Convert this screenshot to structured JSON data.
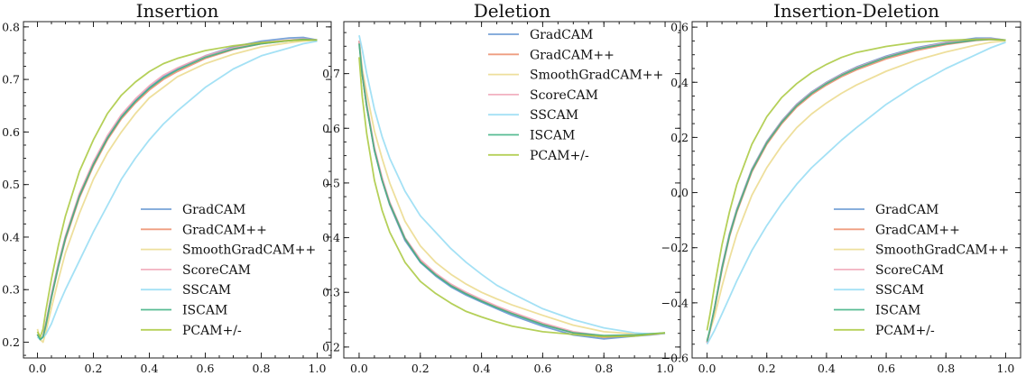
{
  "chart_data": [
    {
      "type": "line",
      "title": "Insertion",
      "xlabel": "",
      "ylabel": "",
      "xlim": [
        -0.05,
        1.05
      ],
      "ylim": [
        0.17,
        0.81
      ],
      "xticks": [
        "0.0",
        "0.2",
        "0.4",
        "0.6",
        "0.8",
        "1.0"
      ],
      "xtick_values": [
        0,
        0.2,
        0.4,
        0.6,
        0.8,
        1.0
      ],
      "yticks": [
        "0.2",
        "0.3",
        "0.4",
        "0.5",
        "0.6",
        "0.7",
        "0.8"
      ],
      "ytick_values": [
        0.2,
        0.3,
        0.4,
        0.5,
        0.6,
        0.7,
        0.8
      ],
      "legend_position": "lower-right",
      "x": [
        0,
        0.01,
        0.02,
        0.03,
        0.05,
        0.075,
        0.1,
        0.15,
        0.2,
        0.25,
        0.3,
        0.35,
        0.4,
        0.45,
        0.5,
        0.6,
        0.7,
        0.8,
        0.9,
        0.95,
        1.0
      ],
      "series": [
        {
          "name": "GradCAM",
          "values": [
            0.215,
            0.205,
            0.21,
            0.235,
            0.29,
            0.35,
            0.4,
            0.48,
            0.54,
            0.59,
            0.63,
            0.66,
            0.685,
            0.705,
            0.72,
            0.745,
            0.762,
            0.773,
            0.779,
            0.78,
            0.775
          ]
        },
        {
          "name": "GradCAM++",
          "values": [
            0.215,
            0.205,
            0.21,
            0.233,
            0.285,
            0.345,
            0.395,
            0.475,
            0.535,
            0.585,
            0.625,
            0.655,
            0.68,
            0.7,
            0.715,
            0.74,
            0.757,
            0.768,
            0.774,
            0.776,
            0.775
          ]
        },
        {
          "name": "SmoothGradCAM++",
          "values": [
            0.225,
            0.205,
            0.2,
            0.22,
            0.265,
            0.32,
            0.37,
            0.445,
            0.51,
            0.56,
            0.6,
            0.635,
            0.665,
            0.685,
            0.705,
            0.73,
            0.748,
            0.762,
            0.77,
            0.773,
            0.775
          ]
        },
        {
          "name": "ScoreCAM",
          "values": [
            0.215,
            0.205,
            0.212,
            0.236,
            0.29,
            0.35,
            0.402,
            0.483,
            0.543,
            0.593,
            0.633,
            0.663,
            0.688,
            0.708,
            0.722,
            0.745,
            0.76,
            0.77,
            0.775,
            0.777,
            0.775
          ]
        },
        {
          "name": "SSCAM",
          "values": [
            0.21,
            0.205,
            0.21,
            0.215,
            0.235,
            0.27,
            0.3,
            0.355,
            0.41,
            0.46,
            0.51,
            0.55,
            0.585,
            0.615,
            0.64,
            0.685,
            0.72,
            0.745,
            0.76,
            0.768,
            0.773
          ]
        },
        {
          "name": "ISCAM",
          "values": [
            0.215,
            0.205,
            0.21,
            0.232,
            0.285,
            0.345,
            0.398,
            0.478,
            0.538,
            0.588,
            0.628,
            0.658,
            0.683,
            0.703,
            0.718,
            0.742,
            0.758,
            0.768,
            0.774,
            0.776,
            0.775
          ]
        },
        {
          "name": "PCAM+/-",
          "values": [
            0.22,
            0.21,
            0.225,
            0.26,
            0.32,
            0.385,
            0.44,
            0.525,
            0.585,
            0.635,
            0.67,
            0.695,
            0.715,
            0.73,
            0.74,
            0.755,
            0.764,
            0.77,
            0.774,
            0.775,
            0.775
          ]
        }
      ]
    },
    {
      "type": "line",
      "title": "Deletion",
      "xlabel": "",
      "ylabel": "",
      "xlim": [
        -0.05,
        1.05
      ],
      "ylim": [
        0.18,
        0.795
      ],
      "xticks": [
        "0.0",
        "0.2",
        "0.4",
        "0.6",
        "0.8",
        "1.0"
      ],
      "xtick_values": [
        0,
        0.2,
        0.4,
        0.6,
        0.8,
        1.0
      ],
      "yticks": [
        "0.2",
        "0.3",
        "0.4",
        "0.5",
        "0.6",
        "0.7"
      ],
      "ytick_values": [
        0.2,
        0.3,
        0.4,
        0.5,
        0.6,
        0.7
      ],
      "legend_position": "upper-right",
      "x": [
        0,
        0.01,
        0.025,
        0.05,
        0.075,
        0.1,
        0.15,
        0.2,
        0.25,
        0.3,
        0.35,
        0.4,
        0.45,
        0.5,
        0.6,
        0.7,
        0.8,
        0.9,
        0.95,
        1.0
      ],
      "series": [
        {
          "name": "GradCAM",
          "values": [
            0.76,
            0.7,
            0.64,
            0.56,
            0.505,
            0.46,
            0.395,
            0.355,
            0.33,
            0.31,
            0.295,
            0.282,
            0.27,
            0.258,
            0.238,
            0.222,
            0.215,
            0.22,
            0.222,
            0.225
          ]
        },
        {
          "name": "GradCAM++",
          "values": [
            0.76,
            0.7,
            0.64,
            0.562,
            0.507,
            0.462,
            0.398,
            0.358,
            0.333,
            0.313,
            0.298,
            0.285,
            0.273,
            0.262,
            0.242,
            0.226,
            0.218,
            0.221,
            0.223,
            0.225
          ]
        },
        {
          "name": "SmoothGradCAM++",
          "values": [
            0.76,
            0.71,
            0.665,
            0.595,
            0.545,
            0.5,
            0.43,
            0.385,
            0.355,
            0.333,
            0.315,
            0.3,
            0.288,
            0.277,
            0.258,
            0.24,
            0.228,
            0.224,
            0.224,
            0.225
          ]
        },
        {
          "name": "ScoreCAM",
          "values": [
            0.76,
            0.705,
            0.645,
            0.565,
            0.51,
            0.465,
            0.4,
            0.36,
            0.335,
            0.315,
            0.3,
            0.287,
            0.275,
            0.264,
            0.244,
            0.228,
            0.22,
            0.222,
            0.224,
            0.225
          ]
        },
        {
          "name": "SSCAM",
          "values": [
            0.77,
            0.745,
            0.7,
            0.635,
            0.585,
            0.545,
            0.485,
            0.44,
            0.41,
            0.38,
            0.355,
            0.333,
            0.313,
            0.298,
            0.27,
            0.25,
            0.235,
            0.226,
            0.224,
            0.225
          ]
        },
        {
          "name": "ISCAM",
          "values": [
            0.755,
            0.7,
            0.64,
            0.56,
            0.505,
            0.462,
            0.398,
            0.356,
            0.332,
            0.312,
            0.297,
            0.284,
            0.272,
            0.261,
            0.241,
            0.226,
            0.221,
            0.222,
            0.224,
            0.226
          ]
        },
        {
          "name": "PCAM+/-",
          "values": [
            0.73,
            0.66,
            0.59,
            0.505,
            0.45,
            0.41,
            0.355,
            0.32,
            0.298,
            0.28,
            0.265,
            0.255,
            0.246,
            0.238,
            0.228,
            0.223,
            0.219,
            0.22,
            0.223,
            0.226
          ]
        }
      ]
    },
    {
      "type": "line",
      "title": "Insertion-Deletion",
      "xlabel": "",
      "ylabel": "",
      "xlim": [
        -0.05,
        1.05
      ],
      "ylim": [
        -0.6,
        0.62
      ],
      "xticks": [
        "0.0",
        "0.2",
        "0.4",
        "0.6",
        "0.8",
        "1.0"
      ],
      "xtick_values": [
        0,
        0.2,
        0.4,
        0.6,
        0.8,
        1.0
      ],
      "yticks": [
        "−0.6",
        "−0.4",
        "−0.2",
        "0.0",
        "0.2",
        "0.4",
        "0.6"
      ],
      "ytick_values": [
        -0.6,
        -0.4,
        -0.2,
        0.0,
        0.2,
        0.4,
        0.6
      ],
      "legend_position": "lower-right",
      "x": [
        0,
        0.01,
        0.025,
        0.05,
        0.075,
        0.1,
        0.15,
        0.2,
        0.25,
        0.3,
        0.35,
        0.4,
        0.45,
        0.5,
        0.6,
        0.7,
        0.8,
        0.9,
        0.95,
        1.0
      ],
      "series": [
        {
          "name": "GradCAM",
          "values": [
            -0.545,
            -0.5,
            -0.42,
            -0.27,
            -0.15,
            -0.06,
            0.085,
            0.185,
            0.26,
            0.32,
            0.365,
            0.4,
            0.43,
            0.455,
            0.495,
            0.525,
            0.545,
            0.56,
            0.56,
            0.553
          ]
        },
        {
          "name": "GradCAM++",
          "values": [
            -0.545,
            -0.5,
            -0.425,
            -0.28,
            -0.16,
            -0.07,
            0.075,
            0.175,
            0.25,
            0.31,
            0.355,
            0.39,
            0.42,
            0.445,
            0.485,
            0.515,
            0.537,
            0.552,
            0.555,
            0.553
          ]
        },
        {
          "name": "SmoothGradCAM++",
          "values": [
            -0.535,
            -0.5,
            -0.45,
            -0.34,
            -0.24,
            -0.15,
            -0.01,
            0.09,
            0.17,
            0.235,
            0.285,
            0.325,
            0.36,
            0.39,
            0.44,
            0.48,
            0.51,
            0.535,
            0.545,
            0.55
          ]
        },
        {
          "name": "ScoreCAM",
          "values": [
            -0.545,
            -0.498,
            -0.42,
            -0.272,
            -0.152,
            -0.062,
            0.083,
            0.183,
            0.258,
            0.318,
            0.363,
            0.398,
            0.428,
            0.453,
            0.492,
            0.522,
            0.543,
            0.556,
            0.558,
            0.553
          ]
        },
        {
          "name": "SSCAM",
          "values": [
            -0.55,
            -0.53,
            -0.5,
            -0.44,
            -0.38,
            -0.32,
            -0.21,
            -0.12,
            -0.04,
            0.03,
            0.09,
            0.14,
            0.19,
            0.235,
            0.32,
            0.39,
            0.45,
            0.5,
            0.525,
            0.545
          ]
        },
        {
          "name": "ISCAM",
          "values": [
            -0.54,
            -0.495,
            -0.42,
            -0.275,
            -0.155,
            -0.065,
            0.08,
            0.18,
            0.255,
            0.315,
            0.36,
            0.395,
            0.425,
            0.45,
            0.49,
            0.52,
            0.54,
            0.553,
            0.556,
            0.553
          ]
        },
        {
          "name": "PCAM+/-",
          "values": [
            -0.5,
            -0.44,
            -0.34,
            -0.19,
            -0.07,
            0.03,
            0.175,
            0.275,
            0.345,
            0.395,
            0.435,
            0.465,
            0.49,
            0.508,
            0.53,
            0.545,
            0.552,
            0.556,
            0.556,
            0.553
          ]
        }
      ]
    }
  ],
  "colors": {
    "GradCAM": "#5f92cf",
    "GradCAM++": "#ec8c6a",
    "SmoothGradCAM++": "#ebd98b",
    "ScoreCAM": "#f0a3b5",
    "SSCAM": "#94dcf3",
    "ISCAM": "#3aaf80",
    "PCAM+/-": "#a8c83c"
  }
}
